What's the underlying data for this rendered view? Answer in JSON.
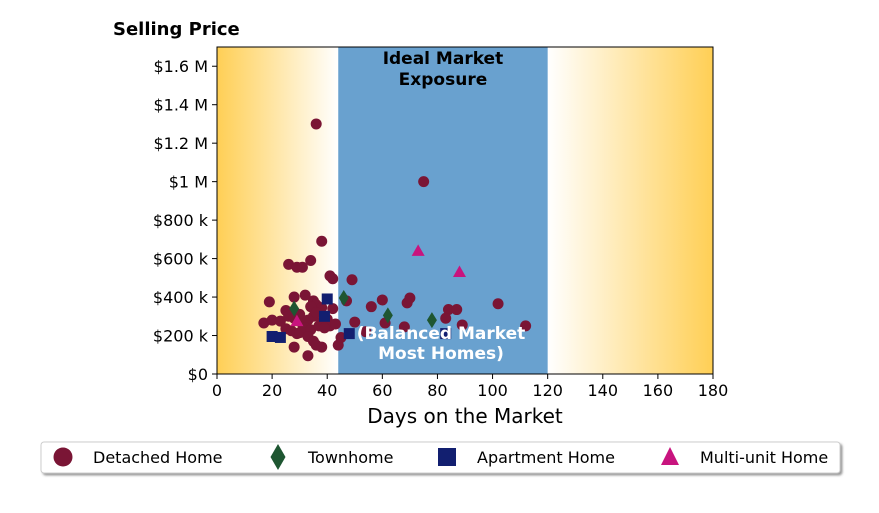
{
  "chart_data": {
    "type": "scatter",
    "title": "Selling Price",
    "xlabel": "Days on the Market",
    "ylabel": "",
    "xlim": [
      0,
      180
    ],
    "ylim": [
      0,
      1700000
    ],
    "xticks": [
      0,
      20,
      40,
      60,
      80,
      100,
      120,
      140,
      160,
      180
    ],
    "xtick_labels": [
      "0",
      "20",
      "40",
      "60",
      "80",
      "100",
      "120",
      "140",
      "160",
      "180"
    ],
    "yticks": [
      0,
      200000,
      400000,
      600000,
      800000,
      1000000,
      1200000,
      1400000,
      1600000
    ],
    "ytick_labels": [
      "$0",
      "$200 k",
      "$400 k",
      "$600 k",
      "$800 k",
      "$1 M",
      "$1.2 M",
      "$1.4 M",
      "$1.6 M"
    ],
    "grid": false,
    "legend_position": "bottom",
    "band": {
      "x_range": [
        44,
        120
      ],
      "color": "#69a1cf",
      "top_label": [
        "Ideal Market",
        "Exposure"
      ],
      "bottom_label": [
        "(Balanced Market",
        "Most Homes)"
      ]
    },
    "gradient_color": "#ffcf55",
    "series": [
      {
        "name": "Detached Home",
        "marker": "circle",
        "color": "#7a1535",
        "points": [
          [
            36,
            1300000
          ],
          [
            75,
            1000000
          ],
          [
            38,
            690000
          ],
          [
            26,
            570000
          ],
          [
            29,
            555000
          ],
          [
            31,
            555000
          ],
          [
            34,
            590000
          ],
          [
            41,
            510000
          ],
          [
            42,
            495000
          ],
          [
            49,
            490000
          ],
          [
            19,
            375000
          ],
          [
            28,
            400000
          ],
          [
            32,
            410000
          ],
          [
            35,
            380000
          ],
          [
            36,
            360000
          ],
          [
            34,
            350000
          ],
          [
            38,
            345000
          ],
          [
            42,
            340000
          ],
          [
            47,
            380000
          ],
          [
            56,
            350000
          ],
          [
            60,
            385000
          ],
          [
            69,
            370000
          ],
          [
            70,
            395000
          ],
          [
            84,
            335000
          ],
          [
            87,
            335000
          ],
          [
            102,
            365000
          ],
          [
            17,
            265000
          ],
          [
            20,
            280000
          ],
          [
            23,
            275000
          ],
          [
            25,
            330000
          ],
          [
            26,
            300000
          ],
          [
            28,
            290000
          ],
          [
            30,
            310000
          ],
          [
            31,
            260000
          ],
          [
            33,
            280000
          ],
          [
            35,
            300000
          ],
          [
            36,
            320000
          ],
          [
            38,
            270000
          ],
          [
            40,
            285000
          ],
          [
            41,
            250000
          ],
          [
            43,
            260000
          ],
          [
            25,
            235000
          ],
          [
            27,
            225000
          ],
          [
            29,
            210000
          ],
          [
            30,
            215000
          ],
          [
            32,
            240000
          ],
          [
            34,
            230000
          ],
          [
            37,
            250000
          ],
          [
            39,
            240000
          ],
          [
            33,
            195000
          ],
          [
            35,
            170000
          ],
          [
            36,
            150000
          ],
          [
            38,
            140000
          ],
          [
            28,
            140000
          ],
          [
            33,
            95000
          ],
          [
            44,
            150000
          ],
          [
            45,
            190000
          ],
          [
            50,
            270000
          ],
          [
            54,
            220000
          ],
          [
            61,
            265000
          ],
          [
            68,
            245000
          ],
          [
            83,
            290000
          ],
          [
            89,
            255000
          ],
          [
            112,
            250000
          ]
        ]
      },
      {
        "name": "Townhome",
        "marker": "diamond",
        "color": "#1e5631",
        "points": [
          [
            28,
            340000
          ],
          [
            46,
            395000
          ],
          [
            62,
            305000
          ],
          [
            78,
            280000
          ]
        ]
      },
      {
        "name": "Apartment Home",
        "marker": "square",
        "color": "#121f70",
        "points": [
          [
            20,
            195000
          ],
          [
            23,
            190000
          ],
          [
            39,
            300000
          ],
          [
            40,
            390000
          ],
          [
            48,
            210000
          ],
          [
            83,
            210000
          ]
        ]
      },
      {
        "name": "Multi-unit Home",
        "marker": "triangle",
        "color": "#c8147e",
        "points": [
          [
            73,
            640000
          ],
          [
            88,
            530000
          ],
          [
            29,
            275000
          ]
        ]
      }
    ]
  }
}
